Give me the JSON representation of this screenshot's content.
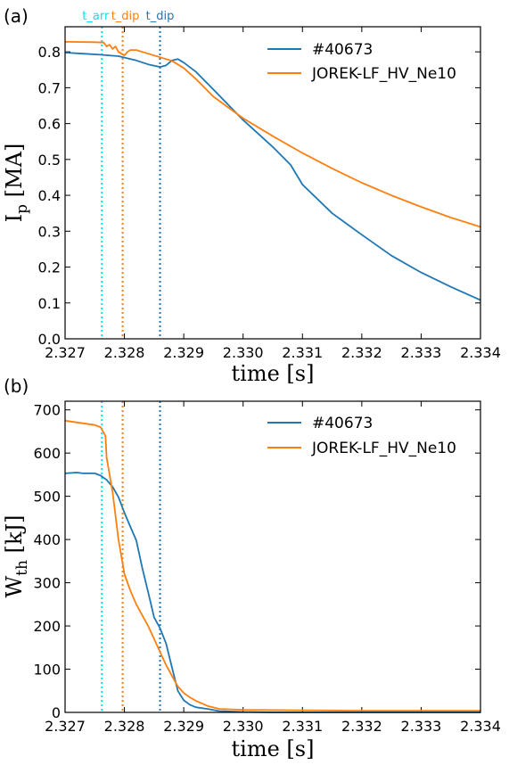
{
  "colors": {
    "exp": "#1f77b4",
    "sim": "#ff7f0e",
    "arr": "#00e5ee"
  },
  "chart_data": [
    {
      "type": "line",
      "panel_label": "(a)",
      "xlabel": "time [s]",
      "ylabel_main": "I",
      "ylabel_sub": "p",
      "ylabel_unit": " [MA]",
      "xlim": [
        2.327,
        2.334
      ],
      "ylim": [
        0.0,
        0.87
      ],
      "xticks": [
        "2.327",
        "2.328",
        "2.329",
        "2.330",
        "2.331",
        "2.332",
        "2.333",
        "2.334"
      ],
      "yticks": [
        "0.0",
        "0.1",
        "0.2",
        "0.3",
        "0.4",
        "0.5",
        "0.6",
        "0.7",
        "0.8"
      ],
      "legend_position": "top-right",
      "markers": [
        {
          "label": "t_arr",
          "x": 2.32762,
          "color": "#00e5ee"
        },
        {
          "label": "t_dip",
          "x": 2.32797,
          "color": "#ff7f0e"
        },
        {
          "label": "t_dip",
          "x": 2.3286,
          "color": "#1f77b4"
        }
      ],
      "series": [
        {
          "name": "#40673",
          "color": "#1f77b4",
          "x": [
            2.327,
            2.3273,
            2.3276,
            2.3279,
            2.3282,
            2.3284,
            2.3286,
            2.3287,
            2.3288,
            2.3289,
            2.329,
            2.3292,
            2.3295,
            2.33,
            2.3305,
            2.3308,
            2.331,
            2.3315,
            2.332,
            2.3325,
            2.333,
            2.3335,
            2.334
          ],
          "y": [
            0.798,
            0.795,
            0.792,
            0.788,
            0.776,
            0.765,
            0.758,
            0.762,
            0.776,
            0.78,
            0.77,
            0.745,
            0.695,
            0.61,
            0.535,
            0.485,
            0.43,
            0.35,
            0.29,
            0.232,
            0.185,
            0.145,
            0.108
          ]
        },
        {
          "name": "JOREK-LF_HV_Ne10",
          "color": "#ff7f0e",
          "x": [
            2.327,
            2.3275,
            2.32765,
            2.3277,
            2.32775,
            2.3278,
            2.32785,
            2.3279,
            2.32795,
            2.328,
            2.32805,
            2.3281,
            2.3282,
            2.3284,
            2.3286,
            2.3288,
            2.329,
            2.3292,
            2.3295,
            2.33,
            2.3305,
            2.331,
            2.3315,
            2.332,
            2.3325,
            2.333,
            2.3335,
            2.334
          ],
          "y": [
            0.828,
            0.827,
            0.826,
            0.815,
            0.82,
            0.808,
            0.815,
            0.8,
            0.795,
            0.79,
            0.8,
            0.805,
            0.805,
            0.795,
            0.785,
            0.775,
            0.755,
            0.725,
            0.675,
            0.615,
            0.565,
            0.518,
            0.475,
            0.435,
            0.4,
            0.368,
            0.338,
            0.312
          ]
        }
      ]
    },
    {
      "type": "line",
      "panel_label": "(b)",
      "xlabel": "time [s]",
      "ylabel_main": "W",
      "ylabel_sub": "th",
      "ylabel_unit": " [kJ]",
      "xlim": [
        2.327,
        2.334
      ],
      "ylim": [
        0,
        720
      ],
      "xticks": [
        "2.327",
        "2.328",
        "2.329",
        "2.330",
        "2.331",
        "2.332",
        "2.333",
        "2.334"
      ],
      "yticks": [
        "0",
        "100",
        "200",
        "300",
        "400",
        "500",
        "600",
        "700"
      ],
      "legend_position": "top-right",
      "markers": [
        {
          "label": "",
          "x": 2.32762,
          "color": "#00e5ee"
        },
        {
          "label": "",
          "x": 2.32797,
          "color": "#ff7f0e"
        },
        {
          "label": "",
          "x": 2.3286,
          "color": "#1f77b4"
        }
      ],
      "series": [
        {
          "name": "#40673",
          "color": "#1f77b4",
          "x": [
            2.327,
            2.3272,
            2.3273,
            2.3275,
            2.3276,
            2.3277,
            2.3278,
            2.3279,
            2.328,
            2.3281,
            2.3282,
            2.3283,
            2.3284,
            2.3285,
            2.3286,
            2.3287,
            2.3288,
            2.3289,
            2.329,
            2.3291,
            2.3292,
            2.3294,
            2.3296,
            2.33,
            2.3305,
            2.331,
            2.332,
            2.333,
            2.334
          ],
          "y": [
            553,
            555,
            553,
            553,
            548,
            538,
            522,
            498,
            462,
            430,
            398,
            335,
            278,
            220,
            195,
            160,
            105,
            50,
            28,
            18,
            12,
            8,
            3,
            1,
            0,
            0,
            0,
            0,
            0
          ]
        },
        {
          "name": "JOREK-LF_HV_Ne10",
          "color": "#ff7f0e",
          "x": [
            2.327,
            2.3275,
            2.3276,
            2.32768,
            2.3277,
            2.3278,
            2.3279,
            2.328,
            2.3281,
            2.3282,
            2.3283,
            2.3284,
            2.3285,
            2.3286,
            2.3287,
            2.3288,
            2.3289,
            2.329,
            2.3291,
            2.3292,
            2.3294,
            2.3296,
            2.33,
            2.331,
            2.332,
            2.333,
            2.334
          ],
          "y": [
            675,
            665,
            660,
            640,
            590,
            510,
            400,
            320,
            282,
            250,
            225,
            200,
            170,
            140,
            110,
            85,
            60,
            45,
            35,
            27,
            15,
            8,
            6,
            5,
            4,
            4,
            4
          ]
        }
      ]
    }
  ]
}
